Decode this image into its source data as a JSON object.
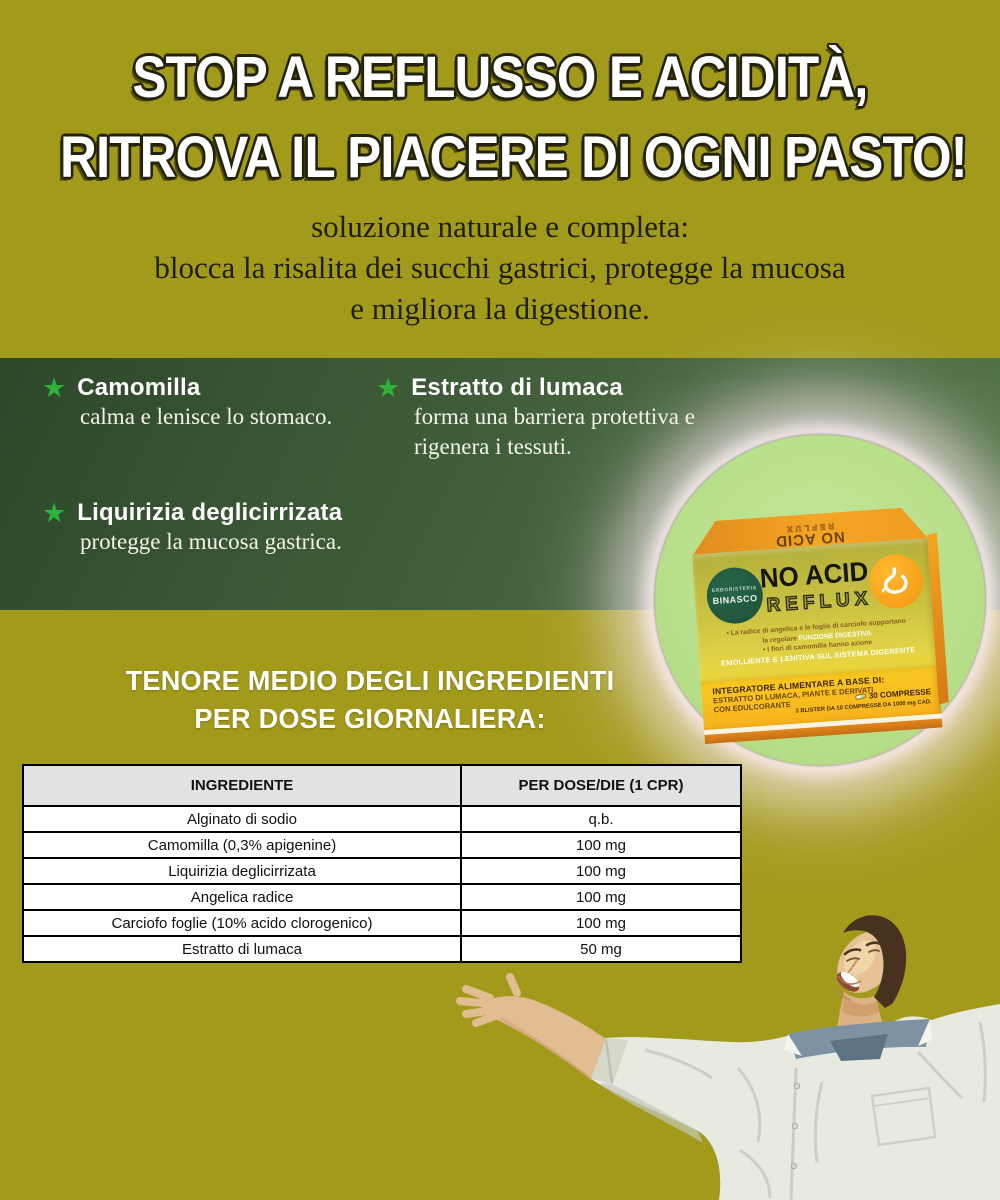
{
  "colors": {
    "background_olive": "#a29a1b",
    "band_green": "#3d5a37",
    "star_green": "#2db33c",
    "circle_green": "#b6de87",
    "glow_pink_white": "#f9ebee",
    "box_orange": "#f5a526",
    "box_yellow": "#edd63e",
    "table_header_gray": "#e2e2e2",
    "headline_white": "#ffffff"
  },
  "headline": {
    "line1": "STOP A REFLUSSO E ACIDITÀ,",
    "line2": "RITROVA IL PIACERE DI OGNI PASTO!"
  },
  "subtitle": {
    "line1": "soluzione naturale e completa:",
    "line2": "blocca la risalita dei succhi gastrici, protegge la mucosa",
    "line3": "e migliora la digestione."
  },
  "features": {
    "star_glyph": "★",
    "items": [
      {
        "title": "Camomilla",
        "desc": "calma e lenisce lo stomaco."
      },
      {
        "title": "Estratto di lumaca",
        "desc": "forma una barriera protettiva e rigenera i tessuti."
      },
      {
        "title": "Liquirizia deglicirrizata",
        "desc": "protegge la mucosa gastrica."
      }
    ]
  },
  "product": {
    "brand_top": "ERBORISTERIA",
    "brand_name": "BINASCO",
    "name": "NO ACID",
    "subname": "REFLUX",
    "flap": {
      "name": "NO ACID",
      "sub": "REFLUX"
    },
    "claims": {
      "l1": "• La radice di angelica e le foglie di carciofo supportano",
      "l2a": "la regolare ",
      "l2b": "FUNZIONE DIGESTIVA",
      "l3": "• I fiori di camomilla hanno azione",
      "l4": "EMOLLIENTE E LENITIVA SUL SISTEMA DIGERENTE"
    },
    "band": {
      "l1": "INTEGRATORE ALIMENTARE A BASE DI:",
      "l2": "ESTRATTO DI LUMACA, PIANTE E DERIVATI",
      "l3": "CON EDULCORANTE",
      "count": "30 COMPRESSE",
      "blister": "3 BLISTER DA 10 COMPRESSE DA 1000 mg CAD."
    }
  },
  "ingredients_heading": {
    "line1": "TENORE MEDIO DEGLI INGREDIENTI",
    "line2": "PER DOSE GIORNALIERA:"
  },
  "table": {
    "headers": [
      "INGREDIENTE",
      "PER DOSE/DIE (1 CPR)"
    ],
    "rows": [
      [
        "Alginato di sodio",
        "q.b."
      ],
      [
        "Camomilla (0,3% apigenine)",
        "100 mg"
      ],
      [
        "Liquirizia deglicirrizata",
        "100 mg"
      ],
      [
        "Angelica radice",
        "100 mg"
      ],
      [
        "Carciofo foglie (10% acido clorogenico)",
        "100 mg"
      ],
      [
        "Estratto di lumaca",
        "50 mg"
      ]
    ]
  }
}
